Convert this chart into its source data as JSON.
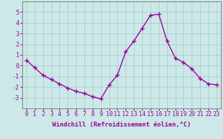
{
  "x": [
    0,
    1,
    2,
    3,
    4,
    5,
    6,
    7,
    8,
    9,
    10,
    11,
    12,
    13,
    14,
    15,
    16,
    17,
    18,
    19,
    20,
    21,
    22,
    23
  ],
  "y": [
    0.5,
    -0.2,
    -0.9,
    -1.3,
    -1.7,
    -2.1,
    -2.4,
    -2.6,
    -2.9,
    -3.1,
    -1.8,
    -0.9,
    1.3,
    2.3,
    3.5,
    4.7,
    4.8,
    2.3,
    0.7,
    0.3,
    -0.3,
    -1.2,
    -1.7,
    -1.8
  ],
  "line_color": "#990099",
  "marker": "+",
  "marker_size": 4,
  "marker_lw": 1.0,
  "bg_color": "#cce8e8",
  "grid_color": "#aacccc",
  "axes_color": "#990099",
  "xlabel": "Windchill (Refroidissement éolien,°C)",
  "xlabel_fontsize": 6.5,
  "tick_fontsize": 6,
  "ylim": [
    -4,
    6
  ],
  "yticks": [
    -3,
    -2,
    -1,
    0,
    1,
    2,
    3,
    4,
    5
  ],
  "xlim": [
    -0.5,
    23.5
  ],
  "xticks": [
    0,
    1,
    2,
    3,
    4,
    5,
    6,
    7,
    8,
    9,
    10,
    11,
    12,
    13,
    14,
    15,
    16,
    17,
    18,
    19,
    20,
    21,
    22,
    23
  ],
  "spine_color": "#888888",
  "line_width": 1.0
}
